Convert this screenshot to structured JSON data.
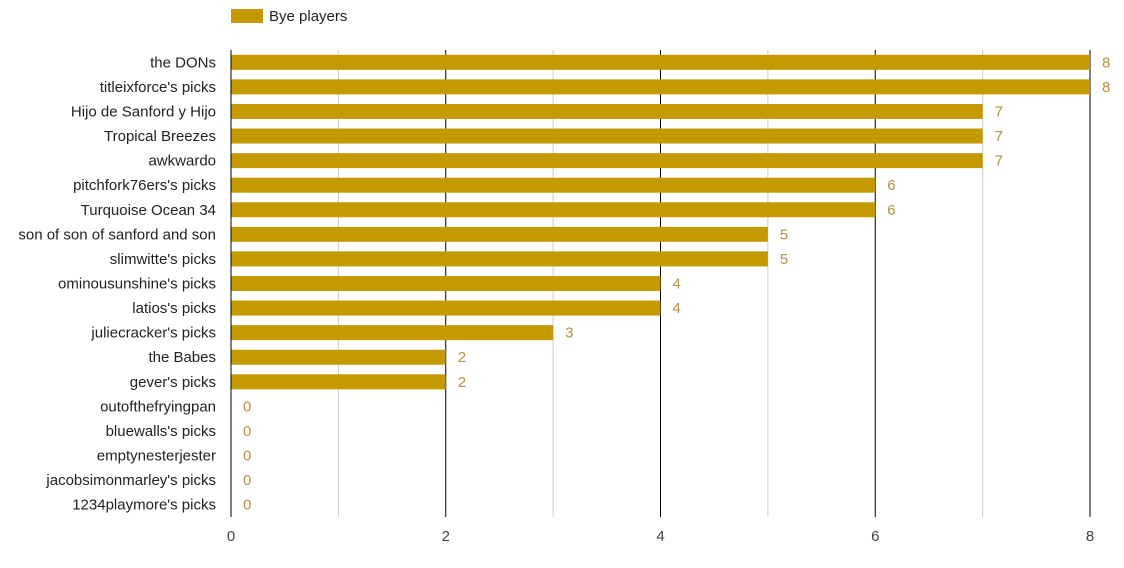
{
  "chart_data": {
    "type": "bar",
    "orientation": "horizontal",
    "categories": [
      "the DONs",
      "titleixforce's picks",
      "Hijo de Sanford y Hijo",
      "Tropical Breezes",
      "awkwardo",
      "pitchfork76ers's picks",
      "Turquoise Ocean 34",
      "son of son of sanford and son",
      "slimwitte's picks",
      "ominousunshine's picks",
      "latios's picks",
      "juliecracker's picks",
      "the Babes",
      "gever's picks",
      "outofthefryingpan",
      "bluewalls's picks",
      "emptynesterjester",
      "jacobsimonmarley's picks",
      "1234playmore's picks"
    ],
    "series": [
      {
        "name": "Bye players",
        "values": [
          8,
          8,
          7,
          7,
          7,
          6,
          6,
          5,
          5,
          4,
          4,
          3,
          2,
          2,
          0,
          0,
          0,
          0,
          0
        ]
      }
    ],
    "xlim": [
      0,
      8
    ],
    "x_ticks": [
      0,
      2,
      4,
      6,
      8
    ],
    "grid": true,
    "legend_position": "top-left",
    "data_labels": true
  },
  "colors": {
    "bar": "#c49a00",
    "data_label": "#b8913a",
    "major_grid": "#000000",
    "minor_grid": "#cccccc",
    "text": "#222222",
    "tick_text": "#444444"
  }
}
